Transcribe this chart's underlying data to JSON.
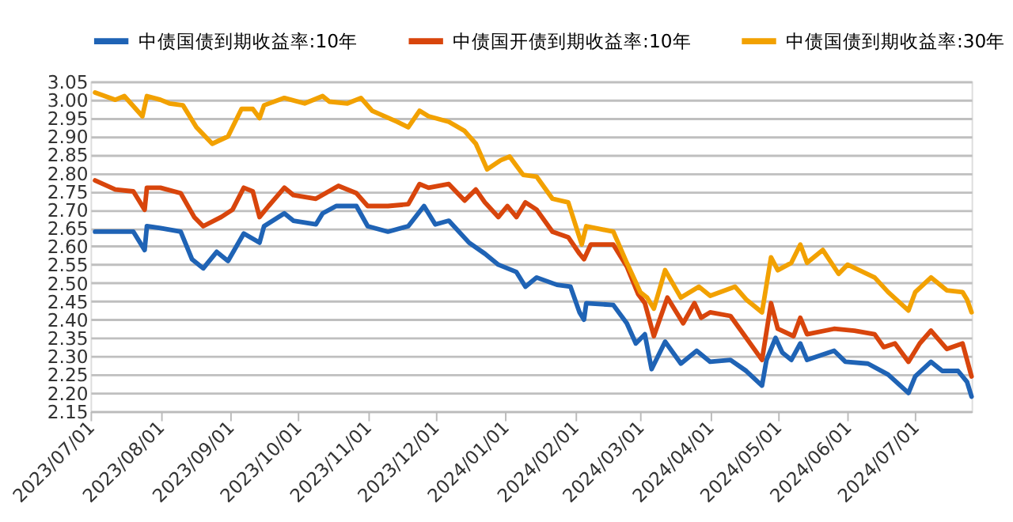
{
  "chart_data": {
    "type": "line",
    "legend": "top",
    "grid": "y",
    "line_style": "solid",
    "marker": "none",
    "xlim": [
      "2023-07-01",
      "2024-07-26"
    ],
    "xticks": [
      {
        "value": "2023-07-01",
        "label": "2023/07/01"
      },
      {
        "value": "2023-08-01",
        "label": "2023/08/01"
      },
      {
        "value": "2023-09-01",
        "label": "2023/09/01"
      },
      {
        "value": "2023-10-01",
        "label": "2023/10/01"
      },
      {
        "value": "2023-11-01",
        "label": "2023/11/01"
      },
      {
        "value": "2023-12-01",
        "label": "2023/12/01"
      },
      {
        "value": "2024-01-01",
        "label": "2024/01/01"
      },
      {
        "value": "2024-02-01",
        "label": "2024/02/01"
      },
      {
        "value": "2024-03-01",
        "label": "2024/03/01"
      },
      {
        "value": "2024-04-01",
        "label": "2024/04/01"
      },
      {
        "value": "2024-05-01",
        "label": "2024/05/01"
      },
      {
        "value": "2024-06-01",
        "label": "2024/06/01"
      },
      {
        "value": "2024-07-01",
        "label": "2024/07/01"
      }
    ],
    "ylim": [
      2.15,
      3.05
    ],
    "yticks": [
      {
        "value": 2.15,
        "label": "2.15"
      },
      {
        "value": 2.2,
        "label": "2.20"
      },
      {
        "value": 2.25,
        "label": "2.25"
      },
      {
        "value": 2.3,
        "label": "2.30"
      },
      {
        "value": 2.35,
        "label": "2.35"
      },
      {
        "value": 2.4,
        "label": "2.40"
      },
      {
        "value": 2.45,
        "label": "2.45"
      },
      {
        "value": 2.5,
        "label": "2.50"
      },
      {
        "value": 2.55,
        "label": "2.55"
      },
      {
        "value": 2.6,
        "label": "2.60"
      },
      {
        "value": 2.65,
        "label": "2.65"
      },
      {
        "value": 2.7,
        "label": "2.70"
      },
      {
        "value": 2.75,
        "label": "2.75"
      },
      {
        "value": 2.8,
        "label": "2.80"
      },
      {
        "value": 2.85,
        "label": "2.85"
      },
      {
        "value": 2.9,
        "label": "2.90"
      },
      {
        "value": 2.95,
        "label": "2.95"
      },
      {
        "value": 3.0,
        "label": "3.00"
      },
      {
        "value": 3.05,
        "label": "3.05"
      }
    ],
    "series": [
      {
        "name": "中债国债到期收益率:10年",
        "color": "#1f63b5",
        "x": [
          "2023-07-03",
          "2023-07-12",
          "2023-07-20",
          "2023-07-25",
          "2023-07-26",
          "2023-08-01",
          "2023-08-10",
          "2023-08-15",
          "2023-08-20",
          "2023-08-26",
          "2023-08-31",
          "2023-09-07",
          "2023-09-14",
          "2023-09-16",
          "2023-09-25",
          "2023-09-29",
          "2023-10-09",
          "2023-10-12",
          "2023-10-18",
          "2023-10-27",
          "2023-11-01",
          "2023-11-10",
          "2023-11-19",
          "2023-11-26",
          "2023-12-01",
          "2023-12-07",
          "2023-12-16",
          "2023-12-23",
          "2023-12-29",
          "2024-01-06",
          "2024-01-10",
          "2024-01-15",
          "2024-01-24",
          "2024-01-30",
          "2024-02-03",
          "2024-02-05",
          "2024-02-06",
          "2024-02-18",
          "2024-02-24",
          "2024-02-28",
          "2024-03-03",
          "2024-03-06",
          "2024-03-12",
          "2024-03-19",
          "2024-03-26",
          "2024-04-01",
          "2024-04-10",
          "2024-04-17",
          "2024-04-24",
          "2024-04-26",
          "2024-04-30",
          "2024-05-03",
          "2024-05-07",
          "2024-05-11",
          "2024-05-14",
          "2024-05-26",
          "2024-05-31",
          "2024-06-10",
          "2024-06-19",
          "2024-06-28",
          "2024-07-01",
          "2024-07-08",
          "2024-07-13",
          "2024-07-20",
          "2024-07-24",
          "2024-07-26"
        ],
        "values": [
          2.64,
          2.64,
          2.64,
          2.59,
          2.655,
          2.65,
          2.64,
          2.565,
          2.54,
          2.585,
          2.56,
          2.635,
          2.61,
          2.655,
          2.69,
          2.67,
          2.66,
          2.69,
          2.71,
          2.71,
          2.655,
          2.64,
          2.655,
          2.71,
          2.66,
          2.67,
          2.61,
          2.58,
          2.55,
          2.53,
          2.49,
          2.515,
          2.495,
          2.49,
          2.42,
          2.4,
          2.445,
          2.44,
          2.39,
          2.335,
          2.36,
          2.265,
          2.34,
          2.28,
          2.315,
          2.285,
          2.29,
          2.26,
          2.22,
          2.29,
          2.35,
          2.31,
          2.29,
          2.335,
          2.29,
          2.315,
          2.285,
          2.28,
          2.25,
          2.2,
          2.245,
          2.285,
          2.26,
          2.26,
          2.23,
          2.19
        ]
      },
      {
        "name": "中债国开债到期收益率:10年",
        "color": "#d8450c",
        "x": [
          "2023-07-03",
          "2023-07-12",
          "2023-07-20",
          "2023-07-25",
          "2023-07-26",
          "2023-08-01",
          "2023-08-10",
          "2023-08-16",
          "2023-08-20",
          "2023-08-28",
          "2023-09-02",
          "2023-09-07",
          "2023-09-11",
          "2023-09-14",
          "2023-09-18",
          "2023-09-25",
          "2023-09-29",
          "2023-10-09",
          "2023-10-19",
          "2023-10-27",
          "2023-11-01",
          "2023-11-10",
          "2023-11-19",
          "2023-11-24",
          "2023-11-28",
          "2023-12-07",
          "2023-12-14",
          "2023-12-19",
          "2023-12-23",
          "2023-12-29",
          "2024-01-02",
          "2024-01-06",
          "2024-01-10",
          "2024-01-15",
          "2024-01-22",
          "2024-01-29",
          "2024-02-03",
          "2024-02-05",
          "2024-02-08",
          "2024-02-18",
          "2024-02-24",
          "2024-02-29",
          "2024-03-03",
          "2024-03-07",
          "2024-03-13",
          "2024-03-20",
          "2024-03-25",
          "2024-03-28",
          "2024-04-01",
          "2024-04-10",
          "2024-04-17",
          "2024-04-24",
          "2024-04-28",
          "2024-05-01",
          "2024-05-08",
          "2024-05-11",
          "2024-05-14",
          "2024-05-26",
          "2024-06-04",
          "2024-06-13",
          "2024-06-17",
          "2024-06-22",
          "2024-06-28",
          "2024-07-03",
          "2024-07-08",
          "2024-07-15",
          "2024-07-22",
          "2024-07-26"
        ],
        "values": [
          2.78,
          2.755,
          2.75,
          2.7,
          2.76,
          2.76,
          2.745,
          2.68,
          2.655,
          2.68,
          2.7,
          2.76,
          2.75,
          2.68,
          2.71,
          2.76,
          2.74,
          2.73,
          2.765,
          2.745,
          2.71,
          2.71,
          2.715,
          2.77,
          2.76,
          2.77,
          2.725,
          2.755,
          2.72,
          2.68,
          2.71,
          2.68,
          2.72,
          2.7,
          2.64,
          2.625,
          2.58,
          2.565,
          2.605,
          2.605,
          2.545,
          2.47,
          2.445,
          2.355,
          2.46,
          2.39,
          2.445,
          2.405,
          2.42,
          2.41,
          2.35,
          2.29,
          2.445,
          2.375,
          2.355,
          2.405,
          2.36,
          2.375,
          2.37,
          2.36,
          2.325,
          2.335,
          2.285,
          2.335,
          2.37,
          2.32,
          2.335,
          2.245
        ]
      },
      {
        "name": "中债国债到期收益率:30年",
        "color": "#f2a100",
        "x": [
          "2023-07-03",
          "2023-07-12",
          "2023-07-16",
          "2023-07-24",
          "2023-07-26",
          "2023-08-01",
          "2023-08-05",
          "2023-08-11",
          "2023-08-17",
          "2023-08-24",
          "2023-08-31",
          "2023-09-06",
          "2023-09-11",
          "2023-09-14",
          "2023-09-16",
          "2023-09-25",
          "2023-10-04",
          "2023-10-12",
          "2023-10-15",
          "2023-10-23",
          "2023-10-29",
          "2023-11-03",
          "2023-11-14",
          "2023-11-19",
          "2023-11-24",
          "2023-11-28",
          "2023-12-07",
          "2023-12-14",
          "2023-12-19",
          "2023-12-24",
          "2023-12-30",
          "2024-01-03",
          "2024-01-09",
          "2024-01-15",
          "2024-01-22",
          "2024-01-29",
          "2024-02-04",
          "2024-02-06",
          "2024-02-18",
          "2024-02-24",
          "2024-03-01",
          "2024-03-04",
          "2024-03-07",
          "2024-03-12",
          "2024-03-19",
          "2024-03-27",
          "2024-04-01",
          "2024-04-12",
          "2024-04-17",
          "2024-04-24",
          "2024-04-28",
          "2024-05-01",
          "2024-05-07",
          "2024-05-11",
          "2024-05-14",
          "2024-05-21",
          "2024-05-28",
          "2024-06-01",
          "2024-06-13",
          "2024-06-19",
          "2024-06-28",
          "2024-07-01",
          "2024-07-08",
          "2024-07-15",
          "2024-07-22",
          "2024-07-24",
          "2024-07-26"
        ],
        "values": [
          3.02,
          3.0,
          3.01,
          2.955,
          3.01,
          3.0,
          2.99,
          2.985,
          2.925,
          2.88,
          2.9,
          2.975,
          2.975,
          2.95,
          2.985,
          3.005,
          2.99,
          3.01,
          2.995,
          2.99,
          3.005,
          2.97,
          2.94,
          2.925,
          2.97,
          2.955,
          2.94,
          2.915,
          2.88,
          2.81,
          2.835,
          2.845,
          2.795,
          2.79,
          2.73,
          2.72,
          2.605,
          2.655,
          2.64,
          2.555,
          2.475,
          2.46,
          2.43,
          2.535,
          2.46,
          2.49,
          2.465,
          2.49,
          2.455,
          2.42,
          2.57,
          2.535,
          2.555,
          2.605,
          2.555,
          2.59,
          2.525,
          2.55,
          2.515,
          2.475,
          2.425,
          2.475,
          2.515,
          2.48,
          2.475,
          2.455,
          2.42
        ]
      }
    ]
  }
}
